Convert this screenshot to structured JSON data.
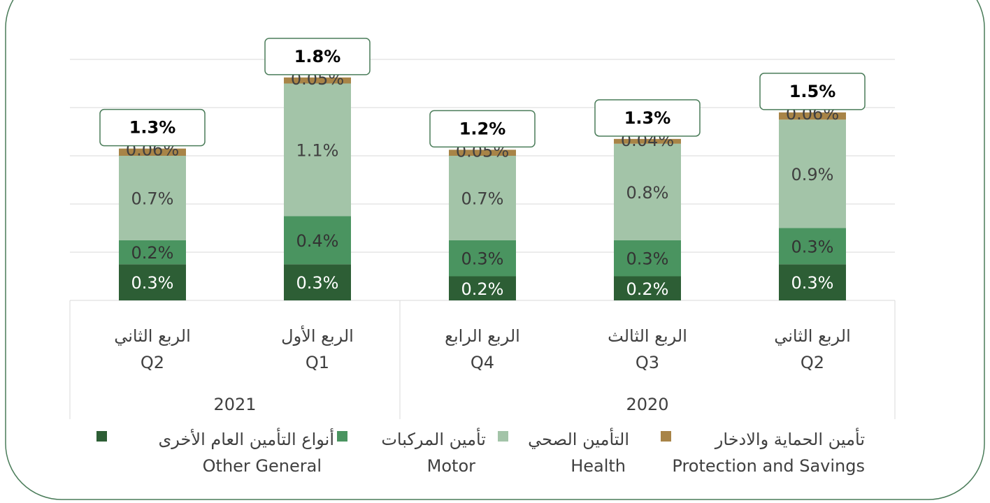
{
  "chart_data": {
    "type": "stacked_bar",
    "categories": [
      "Q2",
      "Q1",
      "Q4",
      "Q3",
      "Q2"
    ],
    "category_labels_ar": [
      "الربع الثاني",
      "الربع الأول",
      "الربع الرابع",
      "الربع الثالث",
      "الربع الثاني"
    ],
    "groups": [
      {
        "label": "2021",
        "span": 2
      },
      {
        "label": "2020",
        "span": 3
      }
    ],
    "series": [
      {
        "name": "أنواع التأمين العام الأخرى",
        "name_en": "Other General",
        "color": "#2d5e35",
        "label_color": "#ffffff",
        "values": [
          0.3,
          0.3,
          0.2,
          0.2,
          0.3
        ],
        "value_labels": [
          "0.3%",
          "0.3%",
          "0.2%",
          "0.2%",
          "0.3%"
        ]
      },
      {
        "name": "تأمين المركبات",
        "name_en": "Motor",
        "color": "#4a9460",
        "label_color": "#333333",
        "values": [
          0.2,
          0.4,
          0.3,
          0.3,
          0.3
        ],
        "value_labels": [
          "0.2%",
          "0.4%",
          "0.3%",
          "0.3%",
          "0.3%"
        ]
      },
      {
        "name": "التأمين الصحي",
        "name_en": "Health",
        "color": "#a3c4a8",
        "label_color": "#404040",
        "values": [
          0.7,
          1.1,
          0.7,
          0.8,
          0.9
        ],
        "value_labels": [
          "0.7%",
          "1.1%",
          "0.7%",
          "0.8%",
          "0.9%"
        ]
      },
      {
        "name": "تأمين الحماية والادخار",
        "name_en": "Protection and Savings",
        "color": "#a88447",
        "label_color": "#404040",
        "values": [
          0.06,
          0.05,
          0.05,
          0.04,
          0.06
        ],
        "value_labels": [
          "0.06%",
          "0.05%",
          "0.05%",
          "0.04%",
          "0.06%"
        ]
      }
    ],
    "totals": {
      "values": [
        1.3,
        1.8,
        1.2,
        1.3,
        1.5
      ],
      "value_labels": [
        "1.3%",
        "1.8%",
        "1.2%",
        "1.3%",
        "1.5%"
      ]
    },
    "ylim": [
      0,
      2.0
    ],
    "yticks": [
      0,
      0.4,
      0.8,
      1.2,
      1.6,
      2.0
    ],
    "grid": true
  }
}
